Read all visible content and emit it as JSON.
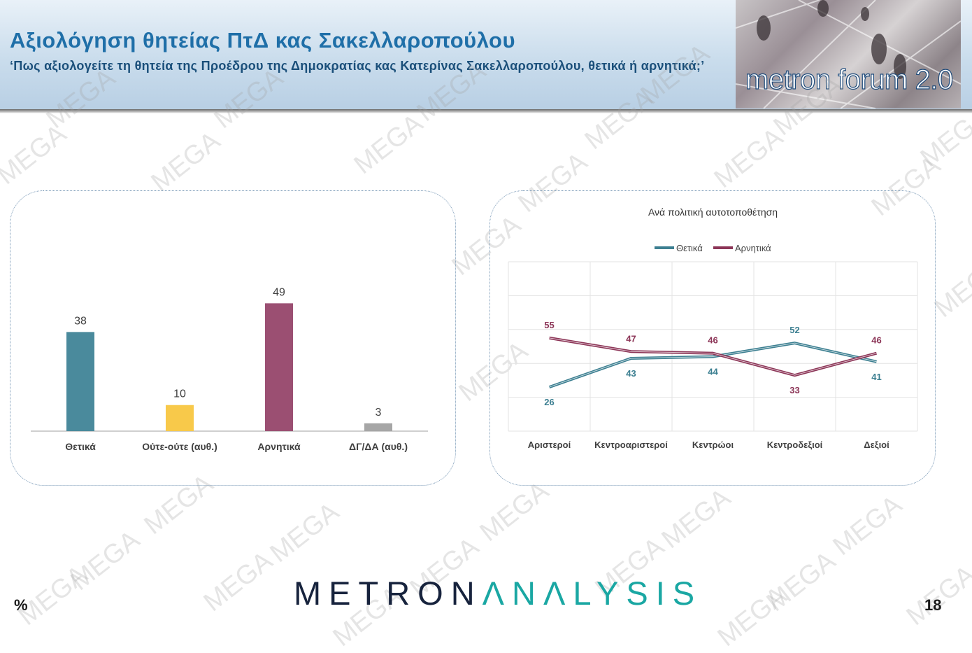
{
  "header": {
    "title": "Αξιολόγηση θητείας ΠτΔ κας Σακελλαροπούλου",
    "subtitle": "‘Πως αξιολογείτε τη θητεία της Προέδρου της Δημοκρατίας κας Κατερίνας Σακελλαροπούλου, θετικά ή αρνητικά;’",
    "logo_text": "metron forum 2.0"
  },
  "watermark_text": "MEGA",
  "footer": {
    "brand_part1": "METRON",
    "brand_part2": "ΛNΛLYSIS",
    "percent_symbol": "%",
    "page_number": "18"
  },
  "chart_data": [
    {
      "type": "bar",
      "categories": [
        "Θετικά",
        "Ούτε-ούτε (αυθ.)",
        "Αρνητικά",
        "ΔΓ/ΔΑ (αυθ.)"
      ],
      "values": [
        38,
        10,
        49,
        3
      ],
      "colors": [
        "#4a8a9c",
        "#f8c94a",
        "#9b4f72",
        "#a6a6a6"
      ],
      "title": "",
      "ylim": [
        0,
        55
      ],
      "grid": false,
      "legend": "none"
    },
    {
      "type": "line",
      "title": "Ανά πολιτική αυτοτοποθέτηση",
      "categories": [
        "Αριστεροί",
        "Κεντροαριστεροί",
        "Κεντρώοι",
        "Κεντροδεξιοί",
        "Δεξιοί"
      ],
      "series": [
        {
          "name": "Θετικά",
          "values": [
            26,
            43,
            44,
            52,
            41
          ],
          "color": "#3c7f91"
        },
        {
          "name": "Αρνητικά",
          "values": [
            55,
            47,
            46,
            33,
            46
          ],
          "color": "#8c3557"
        }
      ],
      "ylim": [
        0,
        100
      ],
      "grid": true,
      "legend": "top"
    }
  ]
}
